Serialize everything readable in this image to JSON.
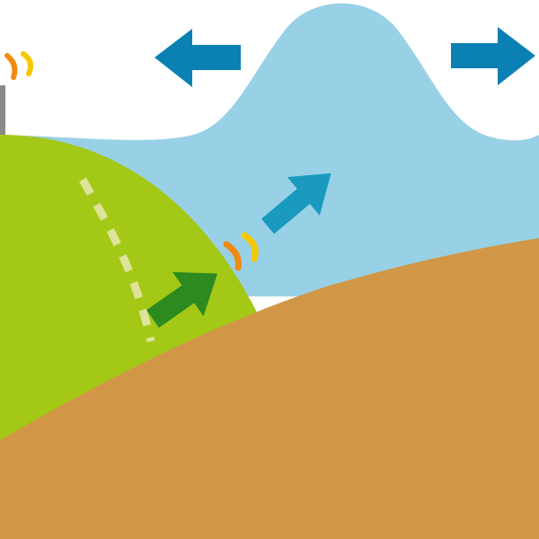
{
  "diagram": {
    "subject": "wave-over-hill",
    "colors": {
      "sky": "#ffffff",
      "water": "#98d1e6",
      "hill": "#a3c816",
      "ground": "#d19746",
      "arrow_dark_blue": "#0b80b3",
      "arrow_teal": "#1a9abf",
      "arrow_green": "#2c8a1f",
      "dashed_path": "#dfe39a",
      "signal_orange": "#f28a10",
      "signal_yellow": "#f5c800"
    },
    "icons": [
      "arrow-left-icon",
      "arrow-right-icon",
      "arrow-up-right-teal-icon",
      "arrow-up-right-green-icon",
      "signal-waves-icon"
    ]
  }
}
